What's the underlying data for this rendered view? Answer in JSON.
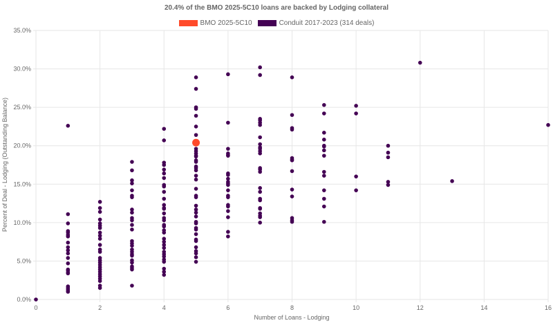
{
  "chart_data": {
    "type": "scatter",
    "title": "20.4% of the BMO 2025-5C10 loans are backed by Lodging collateral",
    "xlabel": "Number of Loans - Lodging",
    "ylabel": "Percent of Deal - Lodging (Outstanding Balance)",
    "xlim": [
      0,
      16
    ],
    "ylim": [
      0,
      35
    ],
    "grid": true,
    "legend_position": "top-center",
    "x_ticks": [
      "0",
      "2",
      "4",
      "6",
      "8",
      "10",
      "12",
      "14",
      "16"
    ],
    "y_ticks": [
      "0.0%",
      "5.0%",
      "10.0%",
      "15.0%",
      "20.0%",
      "25.0%",
      "30.0%",
      "35.0%"
    ],
    "series": [
      {
        "name": "BMO 2025-5C10",
        "color": "#ff4a2a",
        "points": [
          [
            5,
            20.4
          ]
        ]
      },
      {
        "name": "Conduit 2017-2023 (314 deals)",
        "color": "#440154",
        "points": [
          [
            0,
            0
          ],
          [
            1,
            22.6
          ],
          [
            1,
            11.1
          ],
          [
            1,
            9.9
          ],
          [
            1,
            8.9
          ],
          [
            1,
            8.7
          ],
          [
            1,
            8.4
          ],
          [
            1,
            8.2
          ],
          [
            1,
            7.4
          ],
          [
            1,
            6.8
          ],
          [
            1,
            6.4
          ],
          [
            1,
            6.0
          ],
          [
            1,
            5.4
          ],
          [
            1,
            4.7
          ],
          [
            1,
            3.9
          ],
          [
            1,
            3.75
          ],
          [
            1,
            3.5
          ],
          [
            1,
            3.4
          ],
          [
            1,
            1.7
          ],
          [
            1,
            1.5
          ],
          [
            1,
            1.3
          ],
          [
            1,
            1.1
          ],
          [
            1,
            1.0
          ],
          [
            2,
            12.7
          ],
          [
            2,
            11.9
          ],
          [
            2,
            11.4
          ],
          [
            2,
            10.4
          ],
          [
            2,
            9.9
          ],
          [
            2,
            9.6
          ],
          [
            2,
            9.3
          ],
          [
            2,
            8.7
          ],
          [
            2,
            8.3
          ],
          [
            2,
            7.9
          ],
          [
            2,
            7.1
          ],
          [
            2,
            6.5
          ],
          [
            2,
            6.2
          ],
          [
            2,
            5.4
          ],
          [
            2,
            5.1
          ],
          [
            2,
            4.8
          ],
          [
            2,
            4.5
          ],
          [
            2,
            4.2
          ],
          [
            2,
            3.9
          ],
          [
            2,
            3.6
          ],
          [
            2,
            3.3
          ],
          [
            2,
            3.0
          ],
          [
            2,
            2.7
          ],
          [
            2,
            2.4
          ],
          [
            2,
            1.8
          ],
          [
            2,
            1.5
          ],
          [
            3,
            17.9
          ],
          [
            3,
            16.8
          ],
          [
            3,
            15.5
          ],
          [
            3,
            15.1
          ],
          [
            3,
            14.2
          ],
          [
            3,
            13.5
          ],
          [
            3,
            13.3
          ],
          [
            3,
            11.7
          ],
          [
            3,
            11.3
          ],
          [
            3,
            10.6
          ],
          [
            3,
            10.3
          ],
          [
            3,
            9.7
          ],
          [
            3,
            9.1
          ],
          [
            3,
            7.6
          ],
          [
            3,
            7.3
          ],
          [
            3,
            7.0
          ],
          [
            3,
            6.5
          ],
          [
            3,
            6.2
          ],
          [
            3,
            5.9
          ],
          [
            3,
            5.7
          ],
          [
            3,
            5.1
          ],
          [
            3,
            4.8
          ],
          [
            3,
            4.3
          ],
          [
            3,
            4.1
          ],
          [
            3,
            3.9
          ],
          [
            3,
            1.8
          ],
          [
            4,
            22.2
          ],
          [
            4,
            20.7
          ],
          [
            4,
            17.8
          ],
          [
            4,
            17.5
          ],
          [
            4,
            16.9
          ],
          [
            4,
            16.4
          ],
          [
            4,
            15.8
          ],
          [
            4,
            14.9
          ],
          [
            4,
            14.7
          ],
          [
            4,
            14.0
          ],
          [
            4,
            13.1
          ],
          [
            4,
            12.3
          ],
          [
            4,
            11.9
          ],
          [
            4,
            11.8
          ],
          [
            4,
            11.2
          ],
          [
            4,
            10.6
          ],
          [
            4,
            10.3
          ],
          [
            4,
            9.7
          ],
          [
            4,
            9.5
          ],
          [
            4,
            9.0
          ],
          [
            4,
            8.7
          ],
          [
            4,
            7.9
          ],
          [
            4,
            7.5
          ],
          [
            4,
            7.1
          ],
          [
            4,
            6.7
          ],
          [
            4,
            6.2
          ],
          [
            4,
            5.9
          ],
          [
            4,
            5.6
          ],
          [
            4,
            5.2
          ],
          [
            4,
            4.9
          ],
          [
            4,
            4.0
          ],
          [
            4,
            3.6
          ],
          [
            4,
            3.2
          ],
          [
            5,
            28.9
          ],
          [
            5,
            27.4
          ],
          [
            5,
            25.0
          ],
          [
            5,
            24.8
          ],
          [
            5,
            23.9
          ],
          [
            5,
            22.5
          ],
          [
            5,
            21.4
          ],
          [
            5,
            19.6
          ],
          [
            5,
            19.3
          ],
          [
            5,
            19.0
          ],
          [
            5,
            18.7
          ],
          [
            5,
            18.6
          ],
          [
            5,
            18.1
          ],
          [
            5,
            17.9
          ],
          [
            5,
            17.3
          ],
          [
            5,
            17.1
          ],
          [
            5,
            16.8
          ],
          [
            5,
            16.1
          ],
          [
            5,
            15.6
          ],
          [
            5,
            14.4
          ],
          [
            5,
            13.5
          ],
          [
            5,
            13.3
          ],
          [
            5,
            12.2
          ],
          [
            5,
            11.7
          ],
          [
            5,
            11.3
          ],
          [
            5,
            10.8
          ],
          [
            5,
            10.1
          ],
          [
            5,
            9.9
          ],
          [
            5,
            9.3
          ],
          [
            5,
            9.1
          ],
          [
            5,
            8.5
          ],
          [
            5,
            7.8
          ],
          [
            5,
            7.6
          ],
          [
            5,
            6.8
          ],
          [
            5,
            6.3
          ],
          [
            5,
            6.0
          ],
          [
            5,
            5.5
          ],
          [
            5,
            4.9
          ],
          [
            6,
            29.3
          ],
          [
            6,
            23.0
          ],
          [
            6,
            19.6
          ],
          [
            6,
            19.0
          ],
          [
            6,
            18.8
          ],
          [
            6,
            18.7
          ],
          [
            6,
            16.4
          ],
          [
            6,
            16.2
          ],
          [
            6,
            15.7
          ],
          [
            6,
            15.3
          ],
          [
            6,
            15.1
          ],
          [
            6,
            14.9
          ],
          [
            6,
            14.2
          ],
          [
            6,
            13.5
          ],
          [
            6,
            13.3
          ],
          [
            6,
            12.3
          ],
          [
            6,
            12.1
          ],
          [
            6,
            11.5
          ],
          [
            6,
            10.7
          ],
          [
            6,
            8.8
          ],
          [
            6,
            8.2
          ],
          [
            7,
            30.2
          ],
          [
            7,
            29.2
          ],
          [
            7,
            23.5
          ],
          [
            7,
            23.3
          ],
          [
            7,
            23.0
          ],
          [
            7,
            22.7
          ],
          [
            7,
            21.1
          ],
          [
            7,
            20.2
          ],
          [
            7,
            19.8
          ],
          [
            7,
            19.6
          ],
          [
            7,
            19.3
          ],
          [
            7,
            19.0
          ],
          [
            7,
            17.1
          ],
          [
            7,
            16.9
          ],
          [
            7,
            16.6
          ],
          [
            7,
            14.5
          ],
          [
            7,
            14.0
          ],
          [
            7,
            13.1
          ],
          [
            7,
            12.9
          ],
          [
            7,
            11.9
          ],
          [
            7,
            11.8
          ],
          [
            7,
            11.2
          ],
          [
            7,
            10.9
          ],
          [
            7,
            10.7
          ],
          [
            7,
            10.0
          ],
          [
            8,
            28.9
          ],
          [
            8,
            24.0
          ],
          [
            8,
            22.3
          ],
          [
            8,
            22.1
          ],
          [
            8,
            18.4
          ],
          [
            8,
            18.2
          ],
          [
            8,
            18.1
          ],
          [
            8,
            16.7
          ],
          [
            8,
            14.3
          ],
          [
            8,
            13.4
          ],
          [
            8,
            10.6
          ],
          [
            8,
            10.3
          ],
          [
            8,
            10.1
          ],
          [
            9,
            25.3
          ],
          [
            9,
            24.2
          ],
          [
            9,
            21.7
          ],
          [
            9,
            20.8
          ],
          [
            9,
            20.0
          ],
          [
            9,
            19.9
          ],
          [
            9,
            19.4
          ],
          [
            9,
            18.7
          ],
          [
            9,
            16.6
          ],
          [
            9,
            16.1
          ],
          [
            9,
            14.2
          ],
          [
            9,
            13.1
          ],
          [
            9,
            12.1
          ],
          [
            9,
            10.1
          ],
          [
            10,
            25.2
          ],
          [
            10,
            24.2
          ],
          [
            10,
            16.0
          ],
          [
            10,
            14.2
          ],
          [
            11,
            20.0
          ],
          [
            11,
            19.1
          ],
          [
            11,
            18.5
          ],
          [
            11,
            15.3
          ],
          [
            11,
            14.9
          ],
          [
            12,
            30.8
          ],
          [
            13,
            15.4
          ],
          [
            16,
            22.7
          ]
        ]
      }
    ]
  }
}
